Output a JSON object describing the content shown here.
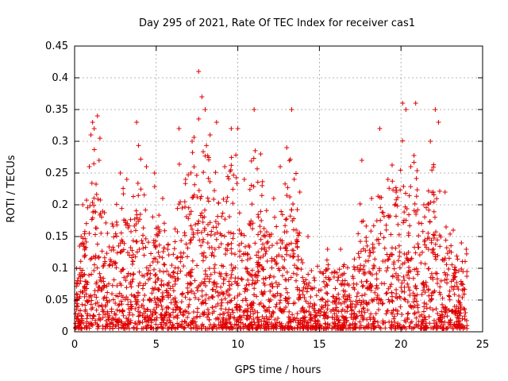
{
  "chart_data": {
    "type": "scatter",
    "title": "Day 295 of 2021, Rate Of TEC Index for receiver cas1",
    "xlabel": "GPS time / hours",
    "ylabel": "ROTI / TECUs",
    "xlim": [
      0,
      25
    ],
    "ylim": [
      0,
      0.45
    ],
    "xticks": [
      0,
      5,
      10,
      15,
      20,
      25
    ],
    "xtick_labels": [
      "0",
      "5",
      "10",
      "15",
      "20",
      "25"
    ],
    "yticks": [
      0,
      0.05,
      0.1,
      0.15,
      0.2,
      0.25,
      0.3,
      0.35,
      0.4,
      0.45
    ],
    "ytick_labels": [
      "0",
      "0.05",
      "0.1",
      "0.15",
      "0.2",
      "0.25",
      "0.3",
      "0.35",
      "0.4",
      "0.45"
    ],
    "grid": true,
    "marker": "+",
    "color": "#e00000",
    "envelope": {
      "x": [
        0,
        0.5,
        1,
        1.5,
        2,
        2.5,
        3,
        3.5,
        4,
        4.5,
        5,
        5.5,
        6,
        6.5,
        7,
        7.5,
        8,
        8.5,
        9,
        9.5,
        10,
        10.5,
        11,
        11.5,
        12,
        12.5,
        13,
        13.5,
        14,
        14.5,
        15,
        15.5,
        16,
        16.5,
        17,
        17.5,
        18,
        18.5,
        19,
        19.5,
        20,
        20.5,
        21,
        21.5,
        22,
        22.5,
        23,
        23.5,
        24
      ],
      "y_max": [
        0.08,
        0.2,
        0.33,
        0.33,
        0.16,
        0.24,
        0.24,
        0.22,
        0.33,
        0.2,
        0.25,
        0.2,
        0.12,
        0.32,
        0.25,
        0.41,
        0.32,
        0.33,
        0.2,
        0.32,
        0.32,
        0.17,
        0.35,
        0.3,
        0.2,
        0.23,
        0.29,
        0.34,
        0.1,
        0.13,
        0.12,
        0.11,
        0.12,
        0.12,
        0.1,
        0.26,
        0.2,
        0.23,
        0.32,
        0.27,
        0.36,
        0.26,
        0.36,
        0.2,
        0.35,
        0.22,
        0.17,
        0.14,
        0.13
      ]
    },
    "points": [
      [
        0.2,
        0.04
      ],
      [
        0.3,
        0.09
      ],
      [
        0.4,
        0.15
      ],
      [
        0.5,
        0.2
      ],
      [
        0.6,
        0.12
      ],
      [
        0.9,
        0.26
      ],
      [
        1.0,
        0.31
      ],
      [
        1.1,
        0.33
      ],
      [
        1.2,
        0.32
      ],
      [
        1.4,
        0.34
      ],
      [
        1.5,
        0.27
      ],
      [
        2.3,
        0.17
      ],
      [
        2.8,
        0.25
      ],
      [
        3.2,
        0.24
      ],
      [
        3.8,
        0.33
      ],
      [
        4.4,
        0.26
      ],
      [
        4.9,
        0.25
      ],
      [
        5.4,
        0.21
      ],
      [
        6.4,
        0.32
      ],
      [
        6.8,
        0.24
      ],
      [
        7.2,
        0.3
      ],
      [
        7.6,
        0.41
      ],
      [
        7.8,
        0.37
      ],
      [
        8.0,
        0.35
      ],
      [
        8.3,
        0.31
      ],
      [
        8.7,
        0.33
      ],
      [
        9.2,
        0.26
      ],
      [
        9.6,
        0.32
      ],
      [
        10.0,
        0.32
      ],
      [
        10.4,
        0.24
      ],
      [
        11.0,
        0.35
      ],
      [
        11.4,
        0.28
      ],
      [
        12.2,
        0.21
      ],
      [
        12.6,
        0.26
      ],
      [
        13.0,
        0.29
      ],
      [
        13.3,
        0.35
      ],
      [
        13.8,
        0.22
      ],
      [
        14.3,
        0.15
      ],
      [
        15.5,
        0.13
      ],
      [
        16.3,
        0.13
      ],
      [
        17.6,
        0.27
      ],
      [
        18.2,
        0.21
      ],
      [
        18.7,
        0.32
      ],
      [
        19.2,
        0.24
      ],
      [
        19.7,
        0.22
      ],
      [
        20.1,
        0.36
      ],
      [
        20.3,
        0.35
      ],
      [
        20.6,
        0.26
      ],
      [
        20.9,
        0.36
      ],
      [
        21.4,
        0.2
      ],
      [
        21.8,
        0.3
      ],
      [
        22.1,
        0.35
      ],
      [
        22.3,
        0.33
      ],
      [
        22.7,
        0.22
      ],
      [
        23.2,
        0.16
      ],
      [
        23.7,
        0.14
      ],
      [
        24.0,
        0.13
      ]
    ]
  }
}
